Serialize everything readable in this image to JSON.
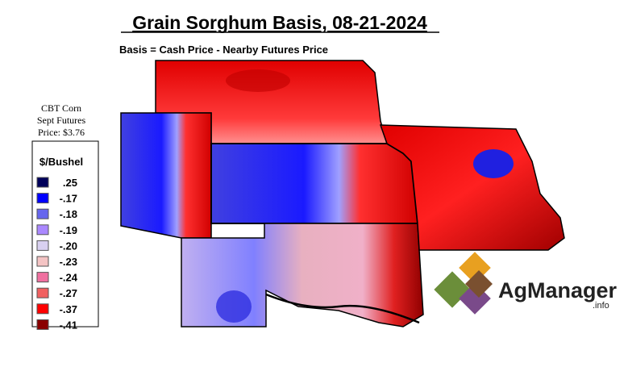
{
  "title": "Grain Sorghum Basis, 08-21-2024",
  "subtitle": "Basis = Cash Price - Nearby Futures Price",
  "futures": {
    "lines": [
      "CBT Corn",
      "Sept Futures",
      "Price: $3.76"
    ]
  },
  "legend": {
    "title": "$/Bushel",
    "items": [
      {
        "label": ".25",
        "color": "#00005a"
      },
      {
        "label": "-.17",
        "color": "#0000ff"
      },
      {
        "label": "-.18",
        "color": "#6666ee"
      },
      {
        "label": "-.19",
        "color": "#aa88ff"
      },
      {
        "label": "-.20",
        "color": "#d8d0f0"
      },
      {
        "label": "-.23",
        "color": "#f4c4c4"
      },
      {
        "label": "-.24",
        "color": "#f070a0"
      },
      {
        "label": "-.27",
        "color": "#f06060"
      },
      {
        "label": "-.37",
        "color": "#ff0000"
      },
      {
        "label": "-.41",
        "color": "#8a0000"
      }
    ]
  },
  "logo": {
    "name": "AgManager",
    "suffix": ".info"
  }
}
